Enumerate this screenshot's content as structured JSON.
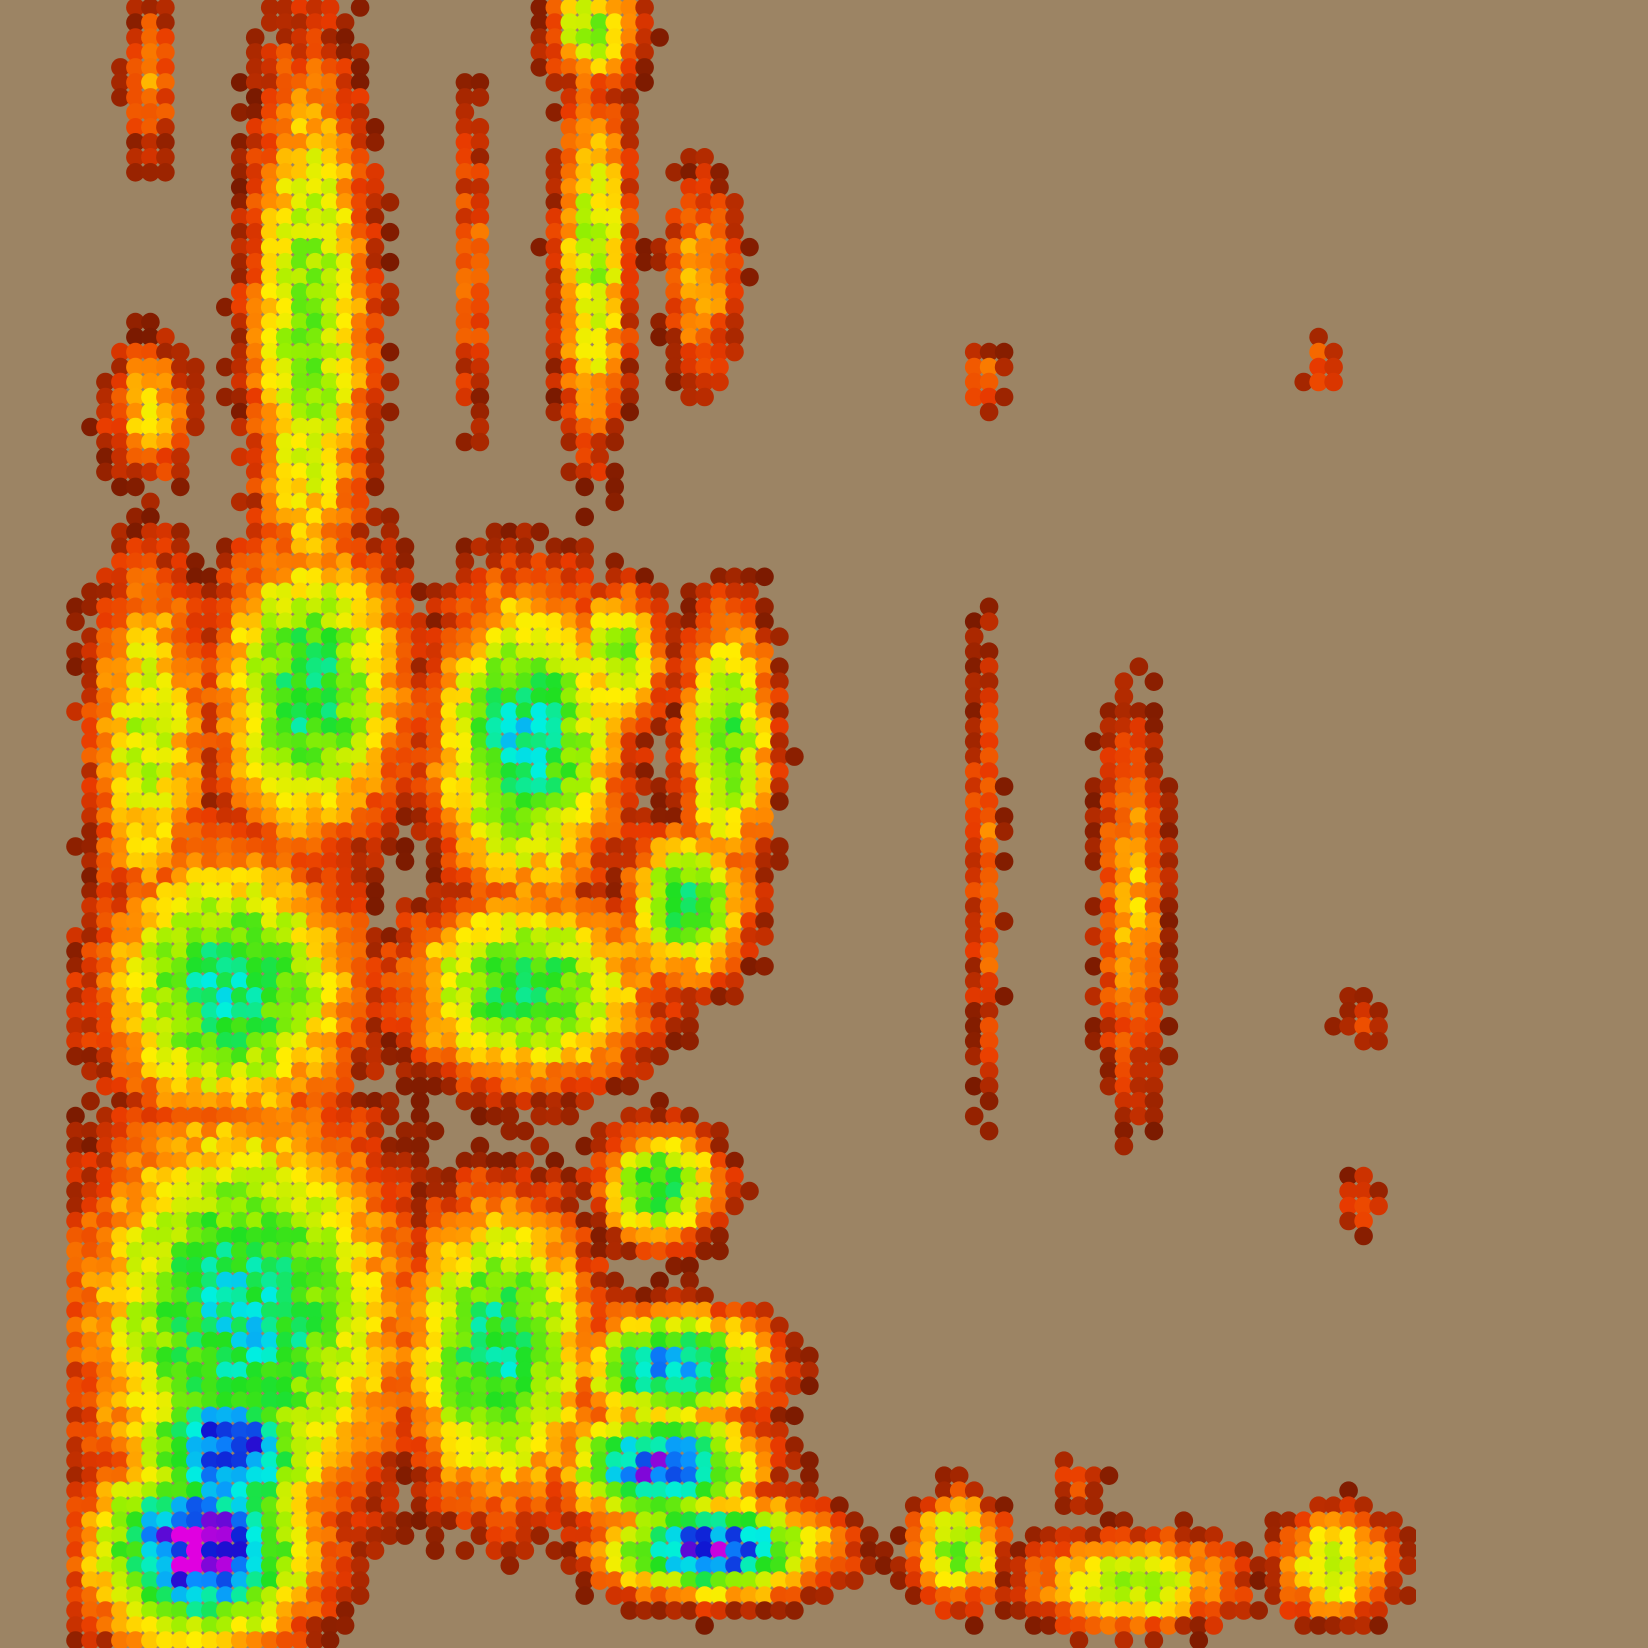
{
  "background_color": "#9c8464",
  "chart_data": {
    "type": "heatmap",
    "grid": false,
    "legend": "none",
    "title": "",
    "xlabel": "",
    "ylabel": "",
    "axes_visible": false,
    "value_range": [
      0,
      1
    ],
    "colormap": [
      {
        "stop": 0.0,
        "color": "#7a1a00"
      },
      {
        "stop": 0.15,
        "color": "#e83a00"
      },
      {
        "stop": 0.3,
        "color": "#ff8c00"
      },
      {
        "stop": 0.42,
        "color": "#ffee00"
      },
      {
        "stop": 0.55,
        "color": "#9cf000"
      },
      {
        "stop": 0.68,
        "color": "#20e020"
      },
      {
        "stop": 0.78,
        "color": "#00f0e0"
      },
      {
        "stop": 0.86,
        "color": "#0a8cff"
      },
      {
        "stop": 0.93,
        "color": "#1010d0"
      },
      {
        "stop": 1.0,
        "color": "#e000e0"
      }
    ],
    "n_rows": 110,
    "n_cols": 90,
    "clusters": [
      {
        "cx": 0.1,
        "cy": 0.94,
        "sx": 0.07,
        "sy": 0.05,
        "v": 1.0
      },
      {
        "cx": 0.12,
        "cy": 0.88,
        "sx": 0.06,
        "sy": 0.05,
        "v": 0.94
      },
      {
        "cx": 0.13,
        "cy": 0.8,
        "sx": 0.1,
        "sy": 0.11,
        "v": 0.82
      },
      {
        "cx": 0.12,
        "cy": 0.6,
        "sx": 0.08,
        "sy": 0.07,
        "v": 0.8
      },
      {
        "cx": 0.18,
        "cy": 0.42,
        "sx": 0.06,
        "sy": 0.08,
        "v": 0.78
      },
      {
        "cx": 0.18,
        "cy": 0.2,
        "sx": 0.04,
        "sy": 0.15,
        "v": 0.68
      },
      {
        "cx": 0.06,
        "cy": 0.25,
        "sx": 0.03,
        "sy": 0.04,
        "v": 0.52
      },
      {
        "cx": 0.06,
        "cy": 0.05,
        "sx": 0.018,
        "sy": 0.05,
        "v": 0.45
      },
      {
        "cx": 0.06,
        "cy": 0.45,
        "sx": 0.04,
        "sy": 0.1,
        "v": 0.62
      },
      {
        "cx": 0.34,
        "cy": 0.45,
        "sx": 0.06,
        "sy": 0.08,
        "v": 0.82
      },
      {
        "cx": 0.34,
        "cy": 0.6,
        "sx": 0.08,
        "sy": 0.05,
        "v": 0.76
      },
      {
        "cx": 0.32,
        "cy": 0.82,
        "sx": 0.06,
        "sy": 0.08,
        "v": 0.8
      },
      {
        "cx": 0.44,
        "cy": 0.89,
        "sx": 0.06,
        "sy": 0.03,
        "v": 0.95
      },
      {
        "cx": 0.48,
        "cy": 0.94,
        "sx": 0.07,
        "sy": 0.025,
        "v": 0.96
      },
      {
        "cx": 0.45,
        "cy": 0.83,
        "sx": 0.06,
        "sy": 0.03,
        "v": 0.88
      },
      {
        "cx": 0.44,
        "cy": 0.72,
        "sx": 0.04,
        "sy": 0.03,
        "v": 0.76
      },
      {
        "cx": 0.46,
        "cy": 0.55,
        "sx": 0.04,
        "sy": 0.04,
        "v": 0.76
      },
      {
        "cx": 0.49,
        "cy": 0.45,
        "sx": 0.03,
        "sy": 0.07,
        "v": 0.72
      },
      {
        "cx": 0.41,
        "cy": 0.4,
        "sx": 0.03,
        "sy": 0.04,
        "v": 0.68
      },
      {
        "cx": 0.39,
        "cy": 0.16,
        "sx": 0.025,
        "sy": 0.1,
        "v": 0.64
      },
      {
        "cx": 0.47,
        "cy": 0.17,
        "sx": 0.025,
        "sy": 0.06,
        "v": 0.5
      },
      {
        "cx": 0.39,
        "cy": 0.02,
        "sx": 0.03,
        "sy": 0.03,
        "v": 0.66
      },
      {
        "cx": 0.3,
        "cy": 0.16,
        "sx": 0.012,
        "sy": 0.1,
        "v": 0.42
      },
      {
        "cx": 0.66,
        "cy": 0.94,
        "sx": 0.03,
        "sy": 0.03,
        "v": 0.68
      },
      {
        "cx": 0.68,
        "cy": 0.52,
        "sx": 0.012,
        "sy": 0.15,
        "v": 0.42
      },
      {
        "cx": 0.68,
        "cy": 0.23,
        "sx": 0.014,
        "sy": 0.02,
        "v": 0.42
      },
      {
        "cx": 0.79,
        "cy": 0.55,
        "sx": 0.025,
        "sy": 0.11,
        "v": 0.5
      },
      {
        "cx": 0.79,
        "cy": 0.96,
        "sx": 0.07,
        "sy": 0.025,
        "v": 0.66
      },
      {
        "cx": 0.94,
        "cy": 0.95,
        "sx": 0.04,
        "sy": 0.03,
        "v": 0.64
      },
      {
        "cx": 0.93,
        "cy": 0.22,
        "sx": 0.014,
        "sy": 0.02,
        "v": 0.4
      },
      {
        "cx": 0.96,
        "cy": 0.73,
        "sx": 0.016,
        "sy": 0.018,
        "v": 0.38
      },
      {
        "cx": 0.96,
        "cy": 0.62,
        "sx": 0.02,
        "sy": 0.016,
        "v": 0.36
      },
      {
        "cx": 0.75,
        "cy": 0.9,
        "sx": 0.02,
        "sy": 0.016,
        "v": 0.36
      }
    ]
  }
}
